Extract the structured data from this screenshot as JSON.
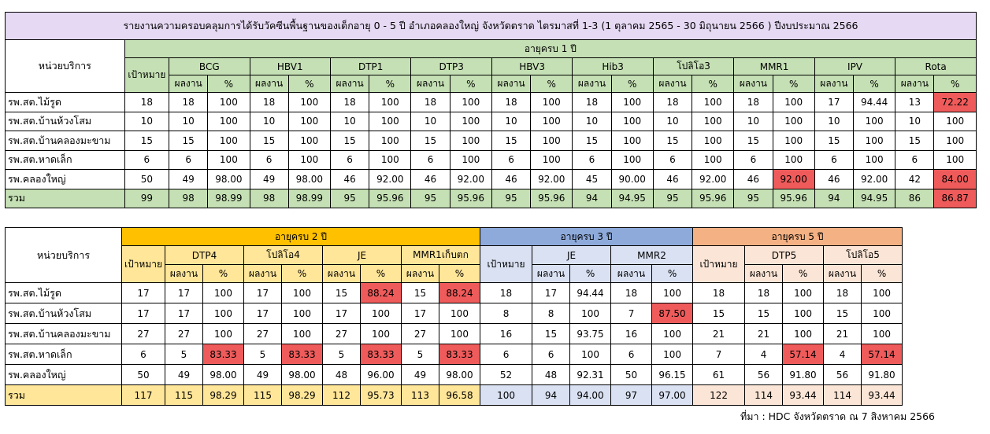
{
  "colors": {
    "group1": "#c5e0b4",
    "title": "#e6d9f3",
    "age2": "#ffc000",
    "age2_light": "#ffe699",
    "age3": "#8eaadb",
    "age3_light": "#d9e1f2",
    "age5": "#f4b183",
    "age5_light": "#fbe5d6",
    "highlight_red": "#ef5b5b"
  },
  "table1": {
    "title": "รายงานความครอบคลุมการได้รับวัคซีนพื้นฐานของเด็กอายุ 0 - 5 ปี อำเภอคลองใหญ่ จังหวัดตราด ไตรมาสที่ 1-3 (1 ตุลาคม 2565 - 30 มิถุนายน 2566 ) ปีงบประมาณ 2566",
    "unit_header": "หน่วยบริการ",
    "age_group": "อายุครบ 1 ปี",
    "target_header": "เป้าหมาย",
    "result_label": "ผลงาน",
    "pct_label": "%",
    "vaccines": [
      "BCG",
      "HBV1",
      "DTP1",
      "DTP3",
      "HBV3",
      "Hib3",
      "โปลิโอ3",
      "MMR1",
      "IPV",
      "Rota"
    ],
    "rows": [
      {
        "unit": "รพ.สต.ไม้รูด",
        "cells": [
          "18",
          "18",
          "100",
          "18",
          "100",
          "18",
          "100",
          "18",
          "100",
          "18",
          "100",
          "18",
          "100",
          "18",
          "100",
          "18",
          "100",
          "17",
          "94.44",
          "13",
          "72.22"
        ]
      },
      {
        "unit": "รพ.สต.บ้านห้วงโสม",
        "cells": [
          "10",
          "10",
          "100",
          "10",
          "100",
          "10",
          "100",
          "10",
          "100",
          "10",
          "100",
          "10",
          "100",
          "10",
          "100",
          "10",
          "100",
          "10",
          "100",
          "10",
          "100"
        ]
      },
      {
        "unit": "รพ.สต.บ้านคลองมะขาม",
        "cells": [
          "15",
          "15",
          "100",
          "15",
          "100",
          "15",
          "100",
          "15",
          "100",
          "15",
          "100",
          "15",
          "100",
          "15",
          "100",
          "15",
          "100",
          "15",
          "100",
          "15",
          "100"
        ]
      },
      {
        "unit": "รพ.สต.หาดเล็ก",
        "cells": [
          "6",
          "6",
          "100",
          "6",
          "100",
          "6",
          "100",
          "6",
          "100",
          "6",
          "100",
          "6",
          "100",
          "6",
          "100",
          "6",
          "100",
          "6",
          "100",
          "6",
          "100"
        ]
      },
      {
        "unit": "รพ.คลองใหญ่",
        "cells": [
          "50",
          "49",
          "98.00",
          "49",
          "98.00",
          "46",
          "92.00",
          "46",
          "92.00",
          "46",
          "92.00",
          "45",
          "90.00",
          "46",
          "92.00",
          "46",
          "92.00",
          "46",
          "92.00",
          "42",
          "84.00"
        ]
      }
    ],
    "total": {
      "unit": "รวม",
      "cells": [
        "99",
        "98",
        "98.99",
        "98",
        "98.99",
        "95",
        "95.96",
        "95",
        "95.96",
        "95",
        "95.96",
        "94",
        "94.95",
        "95",
        "95.96",
        "95",
        "95.96",
        "94",
        "94.95",
        "86",
        "86.87"
      ]
    }
  },
  "table2": {
    "unit_header": "หน่วยบริการ",
    "target_header": "เป้าหมาย",
    "result_label": "ผลงาน",
    "pct_label": "%",
    "age2": {
      "label": "อายุครบ 2 ปี",
      "vaccines": [
        "DTP4",
        "โปลิโอ4",
        "JE",
        "MMR1เก็บตก"
      ]
    },
    "age3": {
      "label": "อายุครบ 3 ปี",
      "vaccines": [
        "JE",
        "MMR2"
      ]
    },
    "age5": {
      "label": "อายุครบ 5 ปี",
      "vaccines": [
        "DTP5",
        "โปลิโอ5"
      ]
    },
    "rows": [
      {
        "unit": "รพ.สต.ไม้รูด",
        "cells": [
          "17",
          "17",
          "100",
          "17",
          "100",
          "15",
          "88.24",
          "15",
          "88.24",
          "18",
          "17",
          "94.44",
          "18",
          "100",
          "18",
          "18",
          "100",
          "18",
          "100"
        ]
      },
      {
        "unit": "รพ.สต.บ้านห้วงโสม",
        "cells": [
          "17",
          "17",
          "100",
          "17",
          "100",
          "17",
          "100",
          "17",
          "100",
          "8",
          "8",
          "100",
          "7",
          "87.50",
          "15",
          "15",
          "100",
          "15",
          "100"
        ]
      },
      {
        "unit": "รพ.สต.บ้านคลองมะขาม",
        "cells": [
          "27",
          "27",
          "100",
          "27",
          "100",
          "27",
          "100",
          "27",
          "100",
          "16",
          "15",
          "93.75",
          "16",
          "100",
          "21",
          "21",
          "100",
          "21",
          "100"
        ]
      },
      {
        "unit": "รพ.สต.หาดเล็ก",
        "cells": [
          "6",
          "5",
          "83.33",
          "5",
          "83.33",
          "5",
          "83.33",
          "5",
          "83.33",
          "6",
          "6",
          "100",
          "6",
          "100",
          "7",
          "4",
          "57.14",
          "4",
          "57.14"
        ]
      },
      {
        "unit": "รพ.คลองใหญ่",
        "cells": [
          "50",
          "49",
          "98.00",
          "49",
          "98.00",
          "48",
          "96.00",
          "49",
          "98.00",
          "52",
          "48",
          "92.31",
          "50",
          "96.15",
          "61",
          "56",
          "91.80",
          "56",
          "91.80"
        ]
      }
    ],
    "total": {
      "unit": "รวม",
      "cells": [
        "117",
        "115",
        "98.29",
        "115",
        "98.29",
        "112",
        "95.73",
        "113",
        "96.58",
        "100",
        "94",
        "94.00",
        "97",
        "97.00",
        "122",
        "114",
        "93.44",
        "114",
        "93.44"
      ]
    }
  },
  "highlights": {
    "table1": [
      [
        0,
        20
      ],
      [
        4,
        16
      ],
      [
        4,
        20
      ],
      [
        5,
        20
      ]
    ],
    "table2": [
      [
        0,
        6
      ],
      [
        0,
        8
      ],
      [
        1,
        13
      ],
      [
        3,
        2
      ],
      [
        3,
        4
      ],
      [
        3,
        6
      ],
      [
        3,
        8
      ],
      [
        3,
        16
      ],
      [
        3,
        18
      ]
    ]
  },
  "source": "ที่มา : HDC จังหวัดตราด ณ 7 สิงหาคม 2566"
}
